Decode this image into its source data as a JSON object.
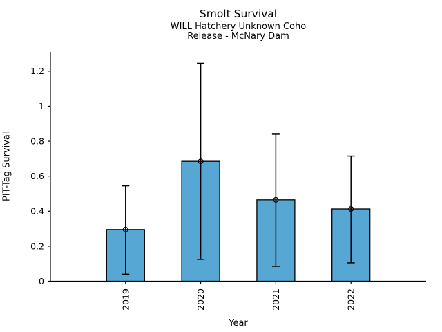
{
  "header": {
    "title": "Smolt Survival",
    "subtitle_line1": "WILL Hatchery Unknown Coho",
    "subtitle_line2": "Release - McNary Dam"
  },
  "chart_data": {
    "type": "bar",
    "title": "Smolt Survival",
    "subtitle": [
      "WILL Hatchery Unknown Coho",
      "Release - McNary Dam"
    ],
    "categories": [
      "2019",
      "2020",
      "2021",
      "2022"
    ],
    "values": [
      0.295,
      0.685,
      0.465,
      0.413
    ],
    "error_low": [
      0.04,
      0.125,
      0.085,
      0.105
    ],
    "error_high": [
      0.545,
      1.245,
      0.84,
      0.715
    ],
    "xlabel": "Year",
    "ylabel": "PIT-Tag Survival",
    "ylim": [
      0,
      1.31
    ],
    "yticks": [
      0,
      0.2,
      0.4,
      0.6,
      0.8,
      1.0,
      1.2
    ],
    "ytick_labels": [
      "0",
      "0.2",
      "0.4",
      "0.6",
      "0.8",
      "1",
      "1.2"
    ],
    "xtick_label_rotation_deg": -90,
    "grid": false,
    "legend": "none",
    "bar_color": "#57A7D4",
    "bar_edge_color": "#000000",
    "error_bar_color": "#000000",
    "marker": "open-circle",
    "background_color": "#ffffff"
  }
}
